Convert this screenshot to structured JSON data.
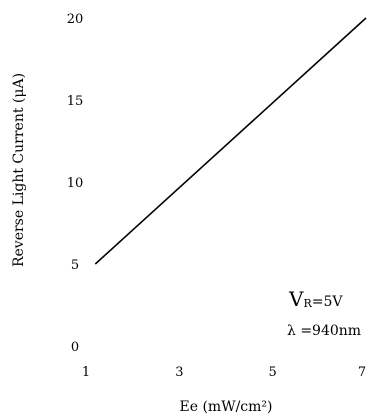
{
  "chart_data": {
    "type": "line",
    "title": "",
    "xlabel": "Ee (mW/cm²)",
    "ylabel": "Reverse Light Current (μA)",
    "x_ticks": [
      1,
      3,
      5,
      7
    ],
    "y_ticks": [
      0,
      5,
      10,
      15,
      20
    ],
    "xlim": [
      1,
      7
    ],
    "ylim": [
      0,
      20
    ],
    "grid": false,
    "series": [
      {
        "color": "#000000",
        "x": [
          1.2,
          7
        ],
        "y": [
          5,
          20
        ]
      }
    ],
    "annotations": {
      "vr_symbol": "V",
      "vr_subscript": "R",
      "vr_value": "=5V",
      "wavelength": "λ =940nm"
    }
  }
}
